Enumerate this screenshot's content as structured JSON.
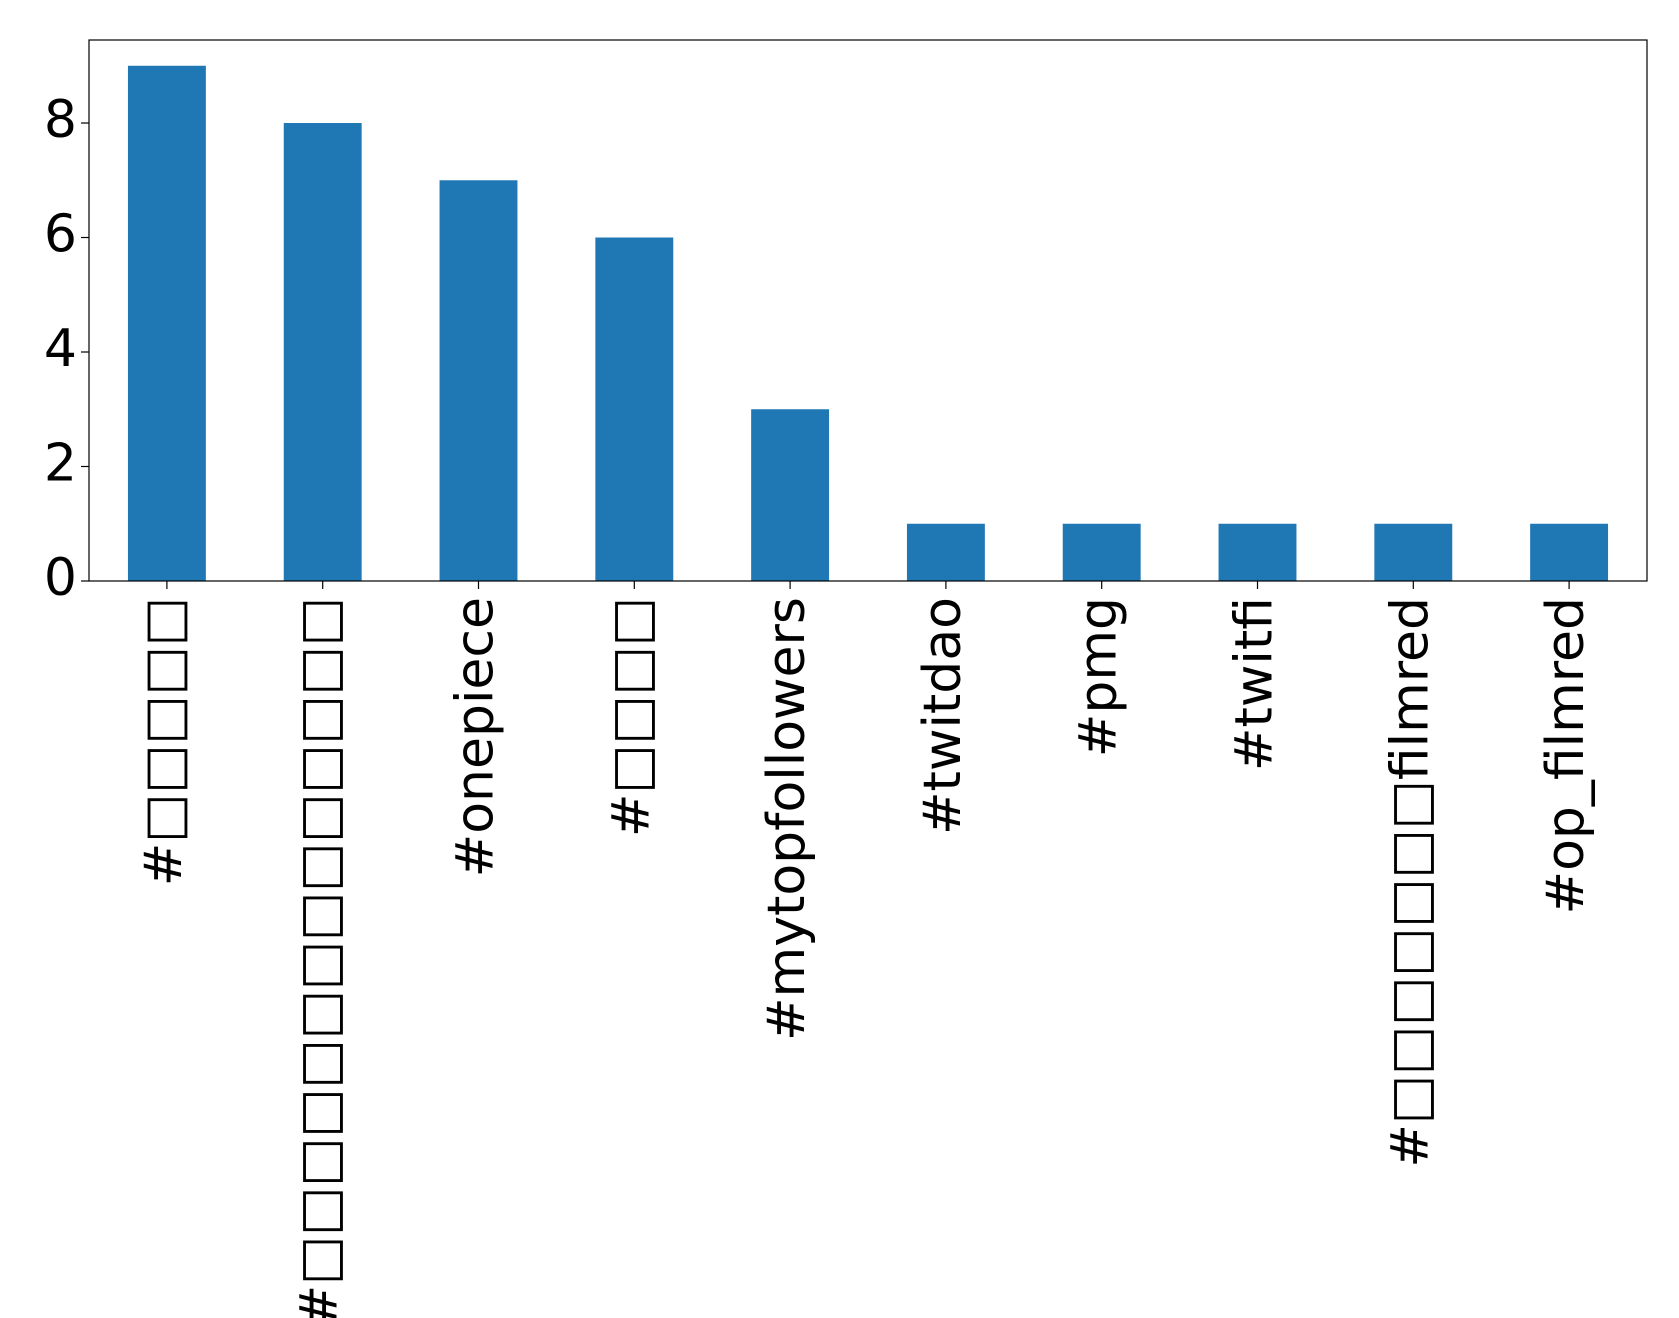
{
  "chart_data": {
    "type": "bar",
    "categories": [
      "#□□□□□",
      "#□□□□□□□□□□□□□□",
      "#onepiece",
      "#□□□□",
      "#mytopfollowers",
      "#twitdao",
      "#pmg",
      "#twitfi",
      "#□□□□□□□filmred",
      "#op_filmred"
    ],
    "values": [
      9,
      8,
      7,
      6,
      3,
      1,
      1,
      1,
      1,
      1
    ],
    "color": "#1f77b4",
    "ylim": [
      0,
      9.45
    ],
    "yticks": [
      0,
      2,
      4,
      6,
      8
    ],
    "grid": false
  }
}
